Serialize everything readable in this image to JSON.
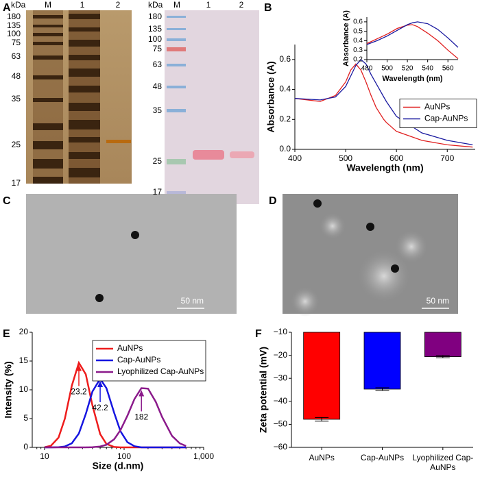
{
  "panel_labels": [
    "A",
    "B",
    "C",
    "D",
    "E",
    "F"
  ],
  "gels": [
    {
      "unit": "kDa",
      "markers": [
        "180",
        "135",
        "100",
        "75",
        "63",
        "48",
        "35",
        "25",
        "17"
      ],
      "lanes": [
        "M",
        "1",
        "2"
      ]
    },
    {
      "unit": "kDa",
      "markers": [
        "180",
        "135",
        "100",
        "75",
        "63",
        "48",
        "35",
        "25",
        "17"
      ],
      "lanes": [
        "M",
        "1",
        "2"
      ]
    }
  ],
  "micrographs": [
    {
      "scale_bar": "50 nm"
    },
    {
      "scale_bar": "50 nm"
    }
  ],
  "chart_data": [
    {
      "type": "line",
      "xlabel": "Wavelength (nm)",
      "ylabel": "Absorbance (A)",
      "x": [
        400,
        450,
        480,
        500,
        510,
        520,
        530,
        540,
        550,
        560,
        575,
        580,
        600,
        650,
        700,
        750
      ],
      "series": [
        {
          "name": "AuNPs",
          "color": "#e02020",
          "values": [
            0.34,
            0.32,
            0.36,
            0.45,
            0.53,
            0.57,
            0.53,
            0.45,
            0.36,
            0.28,
            0.2,
            0.18,
            0.12,
            0.06,
            0.03,
            0.015
          ]
        },
        {
          "name": "Cap-AuNPs",
          "color": "#1a1aa0",
          "values": [
            0.34,
            0.33,
            0.35,
            0.42,
            0.49,
            0.56,
            0.6,
            0.57,
            0.5,
            0.44,
            0.35,
            0.32,
            0.22,
            0.11,
            0.06,
            0.03
          ]
        }
      ],
      "xlim": [
        400,
        755
      ],
      "xticks": [
        400,
        500,
        600,
        700
      ],
      "ylim": [
        0,
        0.7
      ],
      "yticks": [
        {
          "value": 0,
          "label": "0.0"
        },
        0.2,
        0.4,
        0.6
      ],
      "legend": "center right"
    },
    {
      "type": "line",
      "xlabel": "Wavelength (nm)",
      "ylabel": "Absorbance (A)",
      "x": [
        480,
        490,
        500,
        510,
        520,
        525,
        530,
        540,
        550,
        560,
        570
      ],
      "series": [
        {
          "name": "AuNPs",
          "color": "#e02020",
          "values": [
            0.37,
            0.42,
            0.47,
            0.53,
            0.565,
            0.57,
            0.55,
            0.48,
            0.4,
            0.3,
            0.21
          ]
        },
        {
          "name": "Cap-AuNPs",
          "color": "#1a1aa0",
          "values": [
            0.36,
            0.4,
            0.45,
            0.51,
            0.57,
            0.59,
            0.6,
            0.58,
            0.52,
            0.43,
            0.33
          ]
        }
      ],
      "xlim": [
        480,
        570
      ],
      "xticks": [
        480,
        500,
        520,
        540,
        560
      ],
      "ylim": [
        0.2,
        0.65
      ],
      "yticks": [
        0.2,
        0.3,
        0.4,
        0.5,
        0.6
      ]
    },
    {
      "type": "line",
      "xlabel": "Size (d.nm)",
      "ylabel": "Intensity (%)",
      "xscale": "log",
      "x": [
        10,
        12,
        15,
        18,
        22,
        27,
        33,
        40,
        50,
        60,
        75,
        90,
        110,
        135,
        165,
        200,
        250,
        300,
        400,
        500,
        600
      ],
      "series": [
        {
          "name": "AuNPs",
          "color": "#ee1c1c",
          "values": [
            0.04,
            0.27,
            1.7,
            5.0,
            10.7,
            14.7,
            12.7,
            7.3,
            2.3,
            0.6,
            0.07,
            0,
            0,
            0,
            0,
            0,
            0,
            0,
            0,
            0,
            0
          ]
        },
        {
          "name": "Cap-AuNPs",
          "color": "#1515e0",
          "values": [
            0,
            0,
            0.03,
            0.15,
            0.7,
            2.4,
            5.8,
            9.7,
            11.9,
            10.3,
            6.0,
            2.8,
            0.9,
            0.2,
            0,
            0,
            0,
            0,
            0,
            0,
            0
          ]
        },
        {
          "name": "Lyophilized Cap-AuNPs",
          "color": "#8b1a8b",
          "values": [
            0,
            0,
            0,
            0,
            0,
            0,
            0,
            0.03,
            0.15,
            0.45,
            1.4,
            3.0,
            5.5,
            8.4,
            10.3,
            10.2,
            7.9,
            5.3,
            2.0,
            0.7,
            0.24
          ]
        }
      ],
      "annotations": [
        "23.2",
        "42.2",
        "182"
      ],
      "xlim": [
        7,
        1000
      ],
      "xticks": [
        10,
        100,
        {
          "value": 1000,
          "label": "1,000"
        }
      ],
      "ylim": [
        0,
        20
      ],
      "yticks": [
        0,
        5,
        10,
        15,
        20
      ],
      "legend": "upper right"
    },
    {
      "type": "bar",
      "ylabel": "Zeta potential (mV)",
      "categories": [
        "AuNPs",
        "Cap-AuNPs",
        "Lyophilized Cap-AuNPs"
      ],
      "values": [
        -47.8,
        -34.7,
        -20.6
      ],
      "errors": [
        0.8,
        0.6,
        0.5
      ],
      "colors": [
        "#ff0000",
        "#0000ff",
        "#800080"
      ],
      "ylim": [
        -60,
        -10
      ],
      "yticks": [
        {
          "value": -60,
          "label": "−60"
        },
        {
          "value": -50,
          "label": "−50"
        },
        {
          "value": -40,
          "label": "−40"
        },
        {
          "value": -30,
          "label": "−30"
        },
        {
          "value": -20,
          "label": "−20"
        },
        {
          "value": -10,
          "label": "−10"
        }
      ]
    }
  ]
}
